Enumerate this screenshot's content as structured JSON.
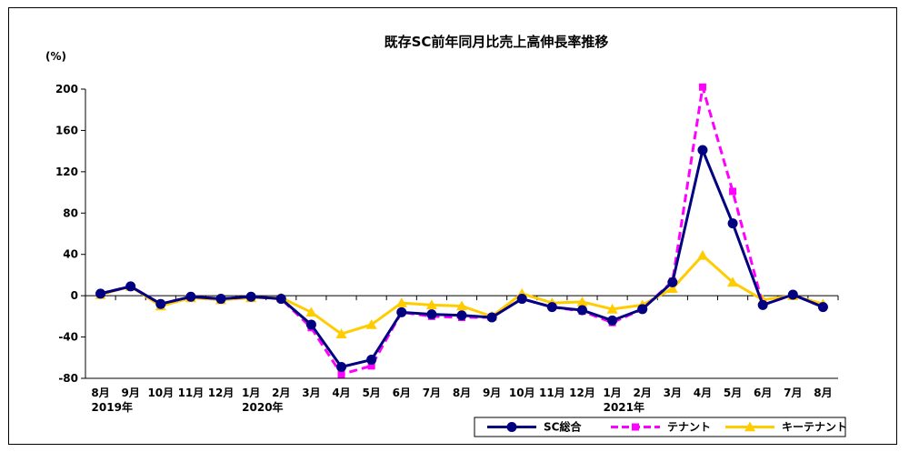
{
  "chart_data": {
    "type": "line",
    "title": "既存SC前年同月比売上高伸長率推移",
    "ylabel": "(%)",
    "xlabel": "",
    "ylim": [
      -80,
      200
    ],
    "yticks": [
      -80,
      -40,
      0,
      40,
      80,
      120,
      160,
      200
    ],
    "categories": [
      "8月",
      "9月",
      "10月",
      "11月",
      "12月",
      "1月",
      "2月",
      "3月",
      "4月",
      "5月",
      "6月",
      "7月",
      "8月",
      "9月",
      "10月",
      "11月",
      "12月",
      "1月",
      "2月",
      "3月",
      "4月",
      "5月",
      "6月",
      "7月",
      "8月"
    ],
    "year_labels": [
      {
        "index": 0,
        "label": "2019年"
      },
      {
        "index": 5,
        "label": "2020年"
      },
      {
        "index": 17,
        "label": "2021年"
      }
    ],
    "grid": false,
    "legend_position": "bottom-right",
    "series": [
      {
        "name": "SC総合",
        "color": "#000080",
        "line_style": "solid",
        "marker": "circle",
        "values": [
          2,
          9,
          -8,
          -1,
          -3,
          -1,
          -3,
          -28,
          -69,
          -62,
          -16,
          -18,
          -19,
          -21,
          -3,
          -11,
          -14,
          -24,
          -13,
          13,
          141,
          70,
          -9,
          1,
          -11
        ]
      },
      {
        "name": "テナント",
        "color": "#FF00FF",
        "line_style": "dashed",
        "marker": "square",
        "values": [
          2,
          9,
          -8,
          -1,
          -3,
          -1,
          -3,
          -31,
          -76,
          -68,
          -16,
          -20,
          -21,
          -21,
          -3,
          -11,
          -15,
          -26,
          -13,
          14,
          202,
          101,
          -9,
          1,
          -11
        ]
      },
      {
        "name": "キーテナント",
        "color": "#FFCC00",
        "line_style": "solid",
        "marker": "triangle",
        "values": [
          1,
          9,
          -10,
          -2,
          -4,
          -2,
          -2,
          -16,
          -37,
          -28,
          -7,
          -9,
          -10,
          -20,
          2,
          -7,
          -6,
          -13,
          -9,
          7,
          39,
          13,
          -4,
          0,
          -8
        ]
      }
    ]
  }
}
